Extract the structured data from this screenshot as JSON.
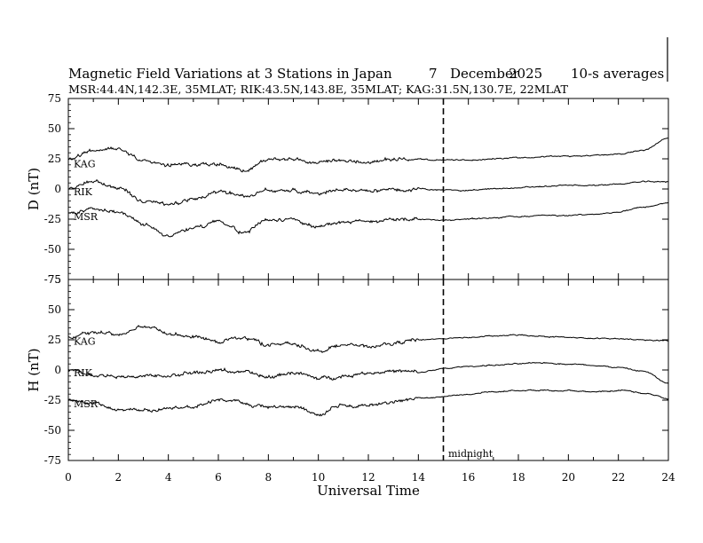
{
  "title": {
    "main": "Magnetic Field Variations at 3 Stations in Japan",
    "day": "7",
    "month": "December",
    "year": "2025",
    "averaging": "10-s averages"
  },
  "subtitle": "MSR:44.4N,142.3E, 35MLAT;  RIK:43.5N,143.8E, 35MLAT;  KAG:31.5N,130.7E, 22MLAT",
  "chart_data": [
    {
      "type": "line",
      "panel": "D",
      "ylabel": "D (nT)",
      "xlabel": "Universal Time",
      "xlim": [
        0,
        24
      ],
      "ylim": [
        -75,
        75
      ],
      "xticks": [
        0,
        2,
        4,
        6,
        8,
        10,
        12,
        14,
        16,
        18,
        20,
        22,
        24
      ],
      "yticks": [
        75,
        50,
        25,
        0,
        -25,
        -50,
        -75
      ],
      "x": [
        0,
        1,
        2,
        3,
        4,
        5,
        6,
        7,
        8,
        9,
        10,
        11,
        12,
        13,
        14,
        15,
        16,
        17,
        18,
        19,
        20,
        21,
        22,
        23,
        24
      ],
      "series": [
        {
          "name": "KAG",
          "values": [
            24,
            32,
            34,
            24,
            19,
            21,
            20,
            15,
            24,
            25,
            21,
            23,
            22,
            25,
            24,
            24,
            24,
            25,
            26,
            27,
            27,
            28,
            29,
            32,
            42
          ]
        },
        {
          "name": "RIK",
          "values": [
            0,
            6,
            0,
            -10,
            -13,
            -8,
            -3,
            -6,
            -1,
            -1,
            -3,
            -1,
            -1,
            -1,
            0,
            -1,
            -1,
            0,
            1,
            2,
            3,
            3,
            4,
            6,
            6
          ]
        },
        {
          "name": "MSR",
          "values": [
            -20,
            -17,
            -19,
            -30,
            -38,
            -33,
            -27,
            -36,
            -25,
            -26,
            -31,
            -28,
            -26,
            -25,
            -25,
            -26,
            -25,
            -24,
            -23,
            -22,
            -22,
            -21,
            -19,
            -15,
            -12
          ]
        }
      ],
      "vline": {
        "x": 15,
        "style": "dashed"
      }
    },
    {
      "type": "line",
      "panel": "H",
      "ylabel": "H (nT)",
      "xlabel": "Universal Time",
      "xlim": [
        0,
        24
      ],
      "ylim": [
        -75,
        75
      ],
      "xticks": [
        0,
        2,
        4,
        6,
        8,
        10,
        12,
        14,
        16,
        18,
        20,
        22,
        24
      ],
      "yticks": [
        75,
        50,
        25,
        0,
        -25,
        -50,
        -75
      ],
      "x": [
        0,
        1,
        2,
        3,
        4,
        5,
        6,
        7,
        8,
        9,
        10,
        11,
        12,
        13,
        14,
        15,
        16,
        17,
        18,
        19,
        20,
        21,
        22,
        23,
        24
      ],
      "series": [
        {
          "name": "KAG",
          "values": [
            27,
            31,
            30,
            36,
            30,
            28,
            24,
            27,
            21,
            22,
            16,
            21,
            19,
            22,
            25,
            26,
            27,
            28,
            29,
            28,
            27,
            26,
            26,
            25,
            24
          ]
        },
        {
          "name": "RIK",
          "values": [
            0,
            -4,
            -6,
            -5,
            -5,
            -3,
            0,
            -2,
            -6,
            -2,
            -7,
            -5,
            -2,
            -1,
            -2,
            1,
            3,
            4,
            5,
            6,
            5,
            4,
            2,
            -1,
            -11
          ]
        },
        {
          "name": "MSR",
          "values": [
            -25,
            -28,
            -33,
            -33,
            -32,
            -30,
            -25,
            -27,
            -31,
            -30,
            -37,
            -30,
            -29,
            -27,
            -24,
            -22,
            -20,
            -18,
            -17,
            -17,
            -17,
            -18,
            -17,
            -19,
            -24
          ]
        }
      ],
      "vline": {
        "x": 15,
        "style": "dashed",
        "label": "midnight"
      }
    }
  ]
}
